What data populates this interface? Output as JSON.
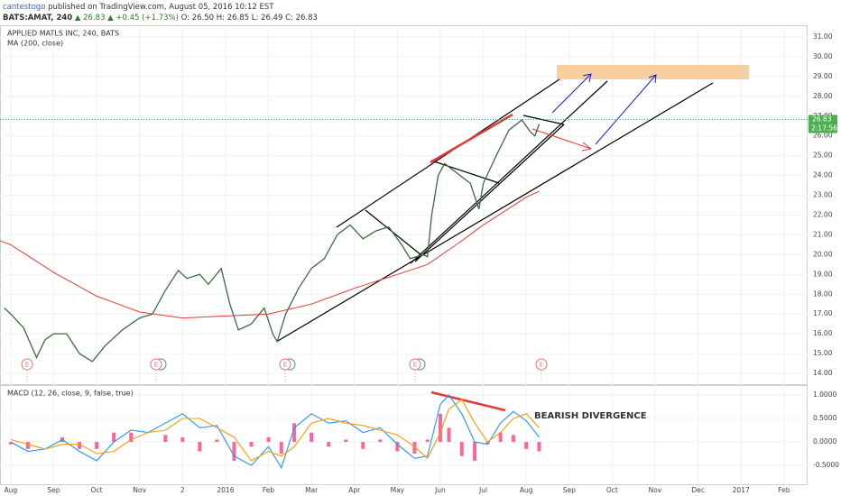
{
  "header": {
    "author": "cantestogo",
    "published": "published on TradingView.com, August 05, 2016 10:12 EST",
    "symbol": "BATS:AMAT, 240",
    "quote": "▲ 26.83 ▲ +0.45 (+1.73%)",
    "ohlc": "O: 26.50 H: 26.85 L: 26.49 C: 26.83"
  },
  "annotation": "BEARISH DIVERGENCE",
  "events": [
    "E",
    "E",
    "E",
    "E",
    "E"
  ],
  "countdown": "2:17:56",
  "chart_data": [
    {
      "type": "line",
      "title": "APPLIED MATLS INC, 240, BATS",
      "subtitle": "MA (200, close)",
      "xlim": [
        -0.25,
        18.55
      ],
      "ylim": [
        13.5,
        31.5
      ],
      "yticks": [
        {
          "value": 14,
          "label": "14.00"
        },
        {
          "value": 15,
          "label": "15.00"
        },
        {
          "value": 16,
          "label": "16.00"
        },
        {
          "value": 17,
          "label": "17.00"
        },
        {
          "value": 18,
          "label": "18.00"
        },
        {
          "value": 19,
          "label": "19.00"
        },
        {
          "value": 20,
          "label": "20.00"
        },
        {
          "value": 21,
          "label": "21.00"
        },
        {
          "value": 22,
          "label": "22.00"
        },
        {
          "value": 23,
          "label": "23.00"
        },
        {
          "value": 24,
          "label": "24.00"
        },
        {
          "value": 25,
          "label": "25.00"
        },
        {
          "value": 26,
          "label": "26.00"
        },
        {
          "value": 27,
          "label": "27.00"
        },
        {
          "value": 28,
          "label": "28.00"
        },
        {
          "value": 29,
          "label": "29.00"
        },
        {
          "value": 30,
          "label": "30.00"
        },
        {
          "value": 31,
          "label": "31.00"
        }
      ],
      "last_price": 26.83,
      "last_color": "#4caf50",
      "series": [
        {
          "name": "AMAT",
          "color": "#3d6b3d",
          "x": [
            -0.15,
            0,
            0.3,
            0.6,
            0.8,
            1,
            1.3,
            1.6,
            1.9,
            2.2,
            2.6,
            3,
            3.3,
            3.6,
            3.9,
            4.1,
            4.4,
            4.6,
            4.9,
            5.1,
            5.3,
            5.6,
            5.9,
            6.1,
            6.2,
            6.4,
            6.7,
            7,
            7.3,
            7.6,
            7.9,
            8.2,
            8.5,
            8.8,
            9.1,
            9.3,
            9.6,
            9.7,
            9.8,
            9.95,
            10.1,
            10.4,
            10.7,
            10.9,
            11,
            11.3,
            11.6,
            11.9,
            12.1,
            12.2,
            12.3
          ],
          "values": [
            17.3,
            17,
            16.3,
            14.8,
            15.7,
            16,
            16,
            15,
            14.6,
            15.4,
            16.2,
            16.8,
            17,
            18.2,
            19.2,
            18.8,
            19,
            18.5,
            19.3,
            17.5,
            16.2,
            16.5,
            17.3,
            16,
            15.6,
            17,
            18.3,
            19.3,
            19.8,
            21,
            21.5,
            20.8,
            21.2,
            21.4,
            20.5,
            19.8,
            20,
            19.9,
            22,
            24,
            24.6,
            24.1,
            23.6,
            22.3,
            23.6,
            25,
            26.3,
            26.8,
            26.2,
            26,
            26.6
          ]
        },
        {
          "name": "MA (200, close)",
          "color": "#e53935",
          "x": [
            -0.25,
            0,
            1,
            2,
            3,
            4,
            5,
            6,
            7,
            8,
            9,
            9.7,
            10.5,
            11,
            12,
            12.3
          ],
          "values": [
            20.7,
            20.5,
            19.1,
            17.9,
            17.1,
            16.8,
            16.9,
            17,
            17.5,
            18.3,
            19,
            19.5,
            20.7,
            21.5,
            22.9,
            23.2
          ]
        }
      ]
    },
    {
      "type": "macd",
      "title": "MACD (12, 26, close, 9, false, true)",
      "xlim": [
        -0.25,
        18.55
      ],
      "ylim": [
        -0.9,
        1.19
      ],
      "yticks": [
        {
          "value": -0.5,
          "label": "-0.5000"
        },
        {
          "value": 0,
          "label": "0.0000"
        },
        {
          "value": 0.5,
          "label": "0.5000"
        },
        {
          "value": 1,
          "label": "1.0000"
        }
      ],
      "xticks": [
        {
          "value": 0,
          "label": "Aug"
        },
        {
          "value": 1,
          "label": "Sep"
        },
        {
          "value": 2,
          "label": "Oct"
        },
        {
          "value": 3,
          "label": "Nov"
        },
        {
          "value": 4,
          "label": "2"
        },
        {
          "value": 5,
          "label": "2016"
        },
        {
          "value": 6,
          "label": "Feb"
        },
        {
          "value": 7,
          "label": "Mar"
        },
        {
          "value": 8,
          "label": "Apr"
        },
        {
          "value": 9,
          "label": "May"
        },
        {
          "value": 10,
          "label": "Jun"
        },
        {
          "value": 11,
          "label": "Jul"
        },
        {
          "value": 12,
          "label": "Aug"
        },
        {
          "value": 13,
          "label": "Sep"
        },
        {
          "value": 14,
          "label": "Oct"
        },
        {
          "value": 15,
          "label": "Nov"
        },
        {
          "value": 16,
          "label": "Dec"
        },
        {
          "value": 17,
          "label": "2017"
        },
        {
          "value": 18,
          "label": "Feb"
        }
      ],
      "x": [
        0,
        0.4,
        0.8,
        1.2,
        1.6,
        2,
        2.4,
        2.8,
        3.2,
        3.6,
        4,
        4.4,
        4.8,
        5.2,
        5.6,
        6,
        6.3,
        6.6,
        7,
        7.4,
        7.8,
        8.2,
        8.6,
        9,
        9.4,
        9.7,
        10,
        10.2,
        10.5,
        10.8,
        11.1,
        11.4,
        11.7,
        12,
        12.3
      ],
      "series": [
        {
          "name": "Histogram",
          "kind": "bar",
          "color": "#ff4a8a",
          "values": [
            -0.05,
            -0.15,
            0,
            0.1,
            -0.15,
            -0.15,
            0.2,
            0.2,
            0,
            0.15,
            0.1,
            -0.2,
            0.05,
            -0.4,
            -0.1,
            0.1,
            -0.25,
            0.4,
            0.2,
            -0.1,
            0.05,
            -0.15,
            0.05,
            -0.2,
            -0.25,
            0.05,
            0.6,
            0.3,
            -0.3,
            -0.4,
            -0.05,
            0.2,
            0.15,
            -0.15,
            -0.2
          ]
        },
        {
          "name": "MACD",
          "kind": "line",
          "color": "#2196f3",
          "values": [
            0,
            -0.2,
            -0.15,
            0.05,
            -0.2,
            -0.4,
            0,
            0.25,
            0.2,
            0.4,
            0.6,
            0.3,
            0.35,
            -0.3,
            -0.5,
            -0.1,
            -0.55,
            0.3,
            0.6,
            0.4,
            0.45,
            0.2,
            0.3,
            -0.05,
            -0.35,
            -0.3,
            0.8,
            1,
            0.6,
            0,
            -0.05,
            0.4,
            0.65,
            0.45,
            0.1
          ]
        },
        {
          "name": "Signal",
          "kind": "line",
          "color": "#ff9800",
          "values": [
            0.05,
            -0.05,
            -0.15,
            -0.05,
            -0.05,
            -0.25,
            -0.2,
            0.05,
            0.2,
            0.25,
            0.5,
            0.5,
            0.3,
            0.1,
            -0.4,
            -0.2,
            -0.3,
            -0.1,
            0.4,
            0.5,
            0.4,
            0.35,
            0.25,
            0.15,
            -0.1,
            -0.35,
            0.2,
            0.7,
            0.9,
            0.4,
            0,
            0.2,
            0.5,
            0.6,
            0.3
          ]
        }
      ]
    }
  ]
}
